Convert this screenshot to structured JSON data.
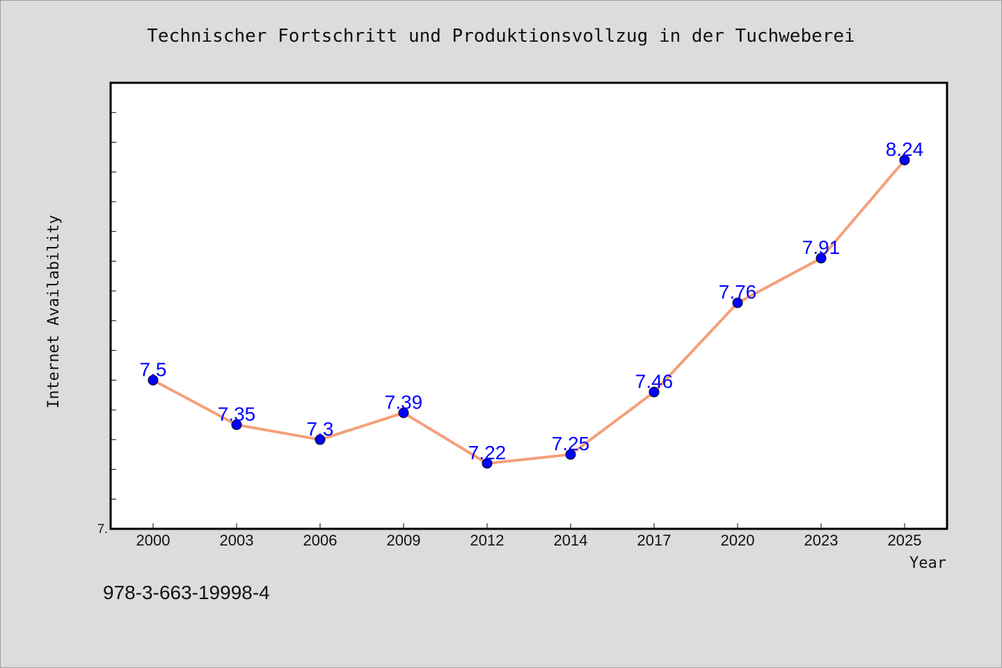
{
  "chart_data": {
    "type": "line",
    "title": "Technischer Fortschritt und Produktionsvollzug in der Tuchweberei",
    "xlabel": "Year",
    "ylabel": "Internet Availability",
    "categories": [
      "2000",
      "2003",
      "2006",
      "2009",
      "2012",
      "2014",
      "2017",
      "2020",
      "2023",
      "2025"
    ],
    "series": [
      {
        "values": [
          7.5,
          7.35,
          7.3,
          7.39,
          7.22,
          7.25,
          7.46,
          7.76,
          7.91,
          8.24
        ]
      }
    ],
    "data_labels": [
      "7.5",
      "7.35",
      "7.3",
      "7.39",
      "7.22",
      "7.25",
      "7.46",
      "7.76",
      "7.91",
      "8.24"
    ],
    "ylim": [
      7.0,
      8.5
    ],
    "yticks": [
      7.0,
      7.1,
      7.2,
      7.3,
      7.4,
      7.5,
      7.6,
      7.7,
      7.8,
      7.9,
      8.0,
      8.1,
      8.2,
      8.3,
      8.4
    ],
    "ytick_labels_shown": [
      "7."
    ],
    "grid": false,
    "legend": "none",
    "line_color": "#f4a07a",
    "marker_color": "#0000ff",
    "label_color": "#0000ff"
  },
  "footer": {
    "isbn": "978-3-663-19998-4"
  }
}
